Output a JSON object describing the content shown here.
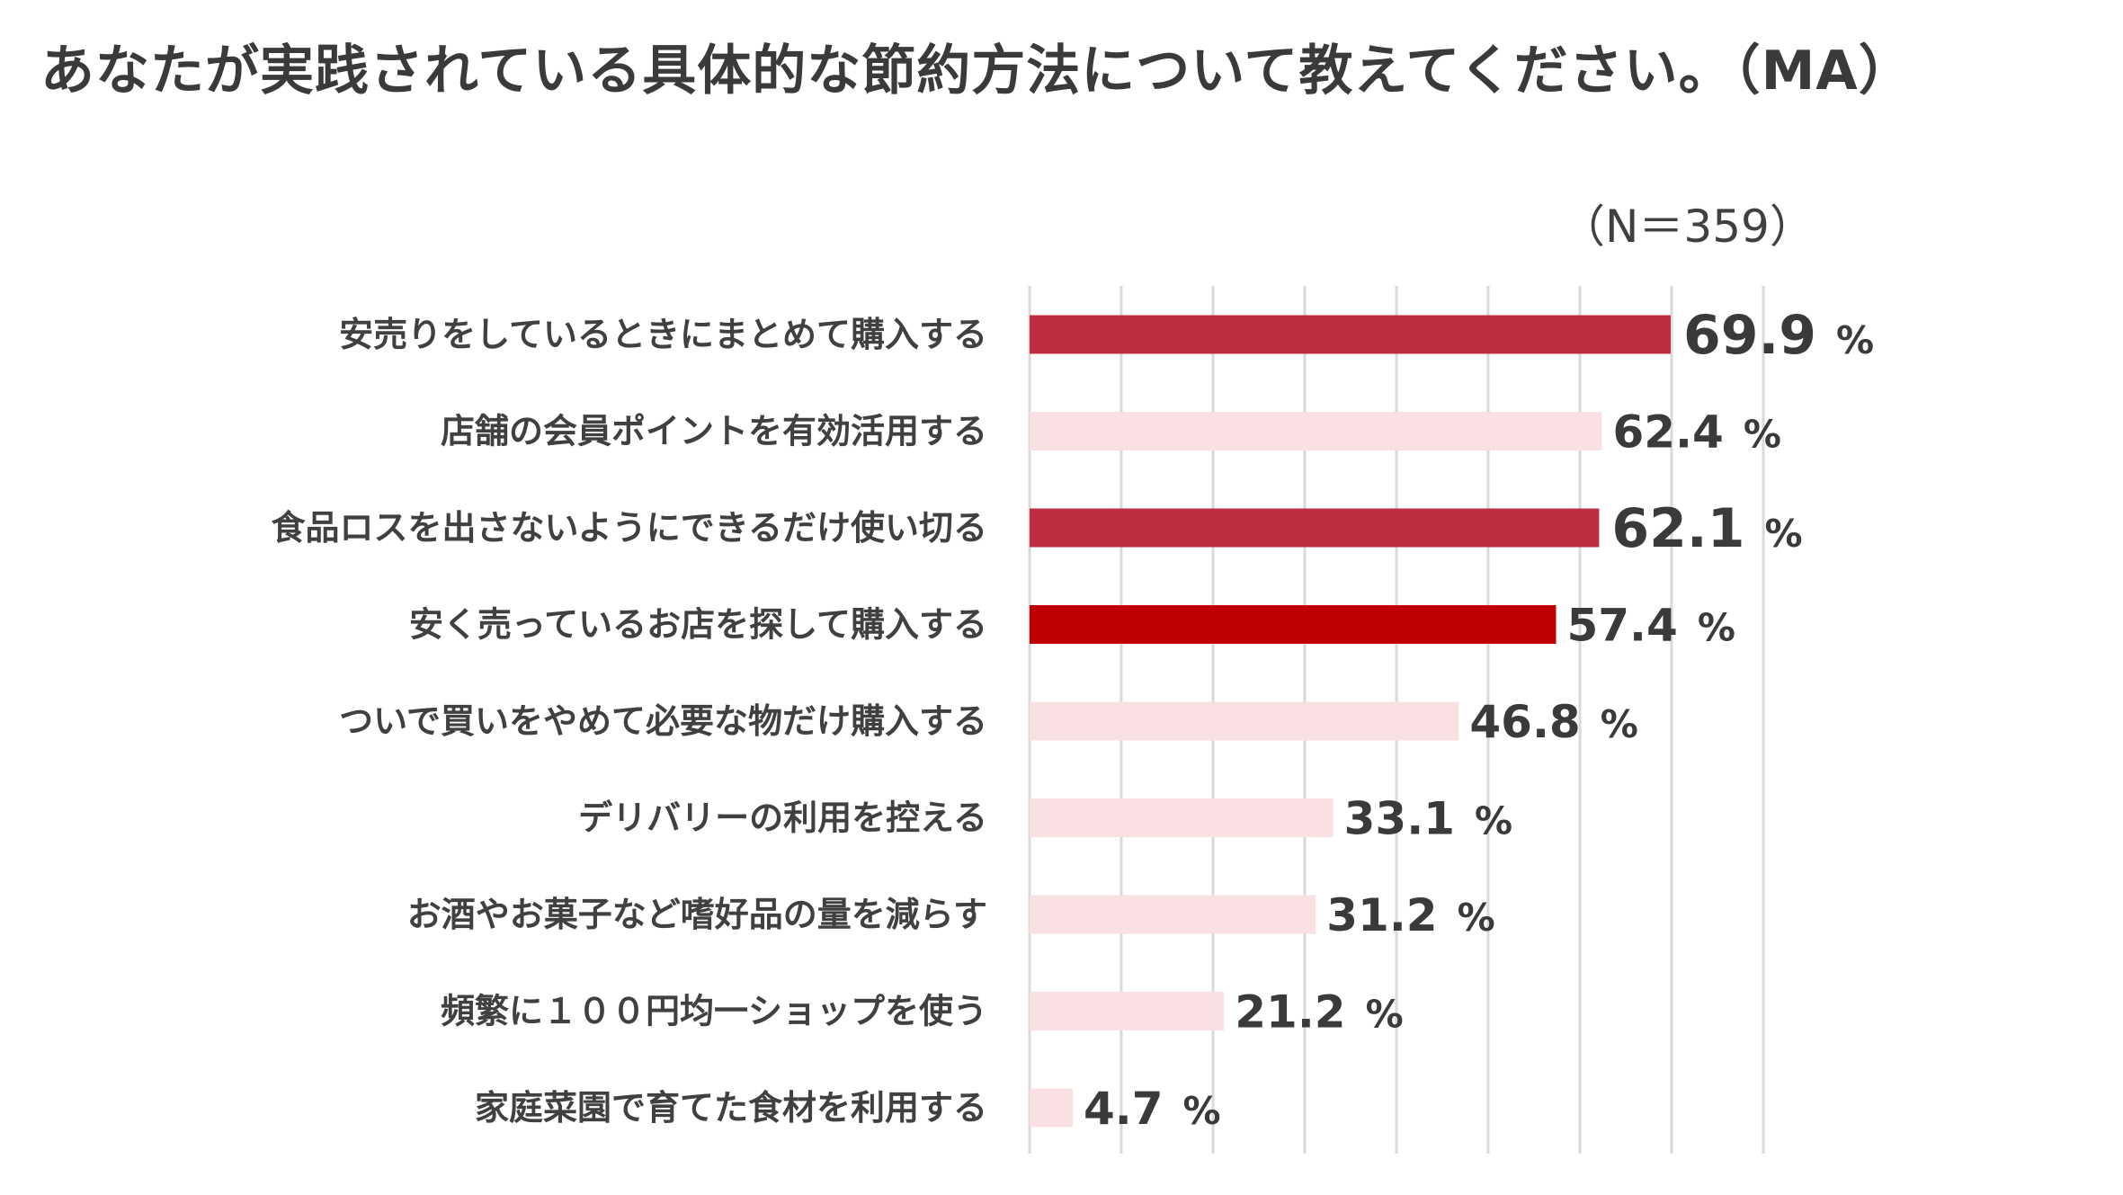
{
  "chart_data": {
    "type": "bar",
    "orientation": "horizontal",
    "title": "あなたが実践されている具体的な節約方法について教えてください。（MA）",
    "subtitle": "（N＝359）",
    "categories": [
      "安売りをしているときにまとめて購入する",
      "店舗の会員ポイントを有効活用する",
      "食品ロスを出さないようにできるだけ使い切る",
      "安く売っているお店を探して購入する",
      "ついで買いをやめて必要な物だけ購入する",
      "デリバリーの利用を控える",
      "お酒やお菓子など嗜好品の量を減らす",
      "頻繁に１００円均一ショップを使う",
      "家庭菜園で育てた食材を利用する"
    ],
    "values": [
      69.9,
      62.4,
      62.1,
      57.4,
      46.8,
      33.1,
      31.2,
      21.2,
      4.7
    ],
    "value_labels": [
      "69.9",
      "62.4",
      "62.1",
      "57.4",
      "46.8",
      "33.1",
      "31.2",
      "21.2",
      "4.7"
    ],
    "unit": "%",
    "highlight": [
      true,
      false,
      true,
      true,
      false,
      false,
      false,
      false,
      false
    ],
    "colors": [
      "#BE2D41",
      "#F8E0E3",
      "#BE2D41",
      "#C00000",
      "#F8E0E3",
      "#F8E0E3",
      "#F8E0E3",
      "#F8E0E3",
      "#F8E0E3"
    ],
    "xlim": [
      0,
      80
    ],
    "grid": true,
    "xlabel": "",
    "ylabel": ""
  }
}
